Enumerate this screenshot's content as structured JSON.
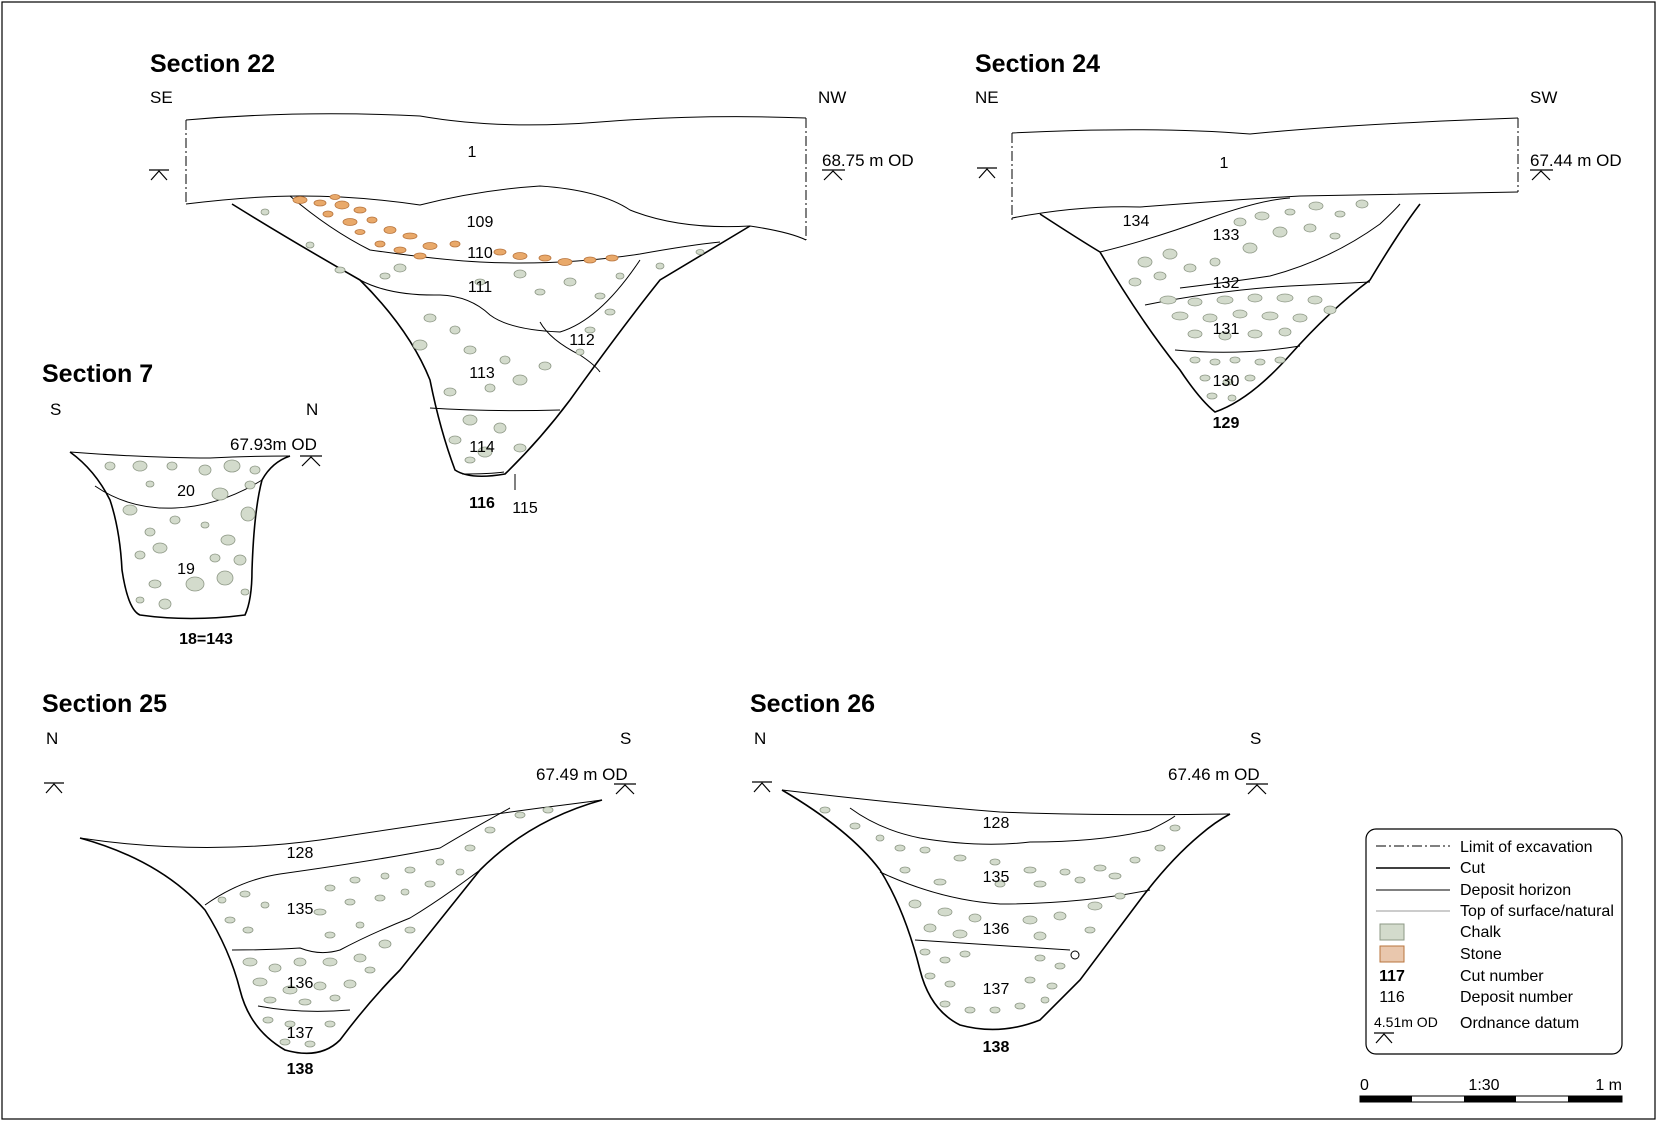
{
  "sections": {
    "s22": {
      "title": "Section 22",
      "left": "SE",
      "right": "NW",
      "datum": "68.75 m OD",
      "deposits": [
        "1",
        "109",
        "110",
        "111",
        "112",
        "113",
        "114",
        "115"
      ],
      "cut": "116"
    },
    "s24": {
      "title": "Section 24",
      "left": "NE",
      "right": "SW",
      "datum": "67.44 m OD",
      "deposits": [
        "1",
        "134",
        "133",
        "132",
        "131",
        "130"
      ],
      "cut": "129"
    },
    "s7": {
      "title": "Section 7",
      "left": "S",
      "right": "N",
      "datum": "67.93m OD",
      "deposits": [
        "20",
        "19"
      ],
      "cut": "18=143"
    },
    "s25": {
      "title": "Section 25",
      "left": "N",
      "right": "S",
      "datum": "67.49 m OD",
      "deposits": [
        "128",
        "135",
        "136",
        "137"
      ],
      "cut": "138"
    },
    "s26": {
      "title": "Section 26",
      "left": "N",
      "right": "S",
      "datum": "67.46 m OD",
      "deposits": [
        "128",
        "135",
        "136",
        "137"
      ],
      "cut": "138"
    }
  },
  "legend": {
    "items": [
      {
        "symbol": "dash-dot-line",
        "label": "Limit of excavation"
      },
      {
        "symbol": "cut-line",
        "label": "Cut"
      },
      {
        "symbol": "horizon-line",
        "label": "Deposit horizon"
      },
      {
        "symbol": "surface-line",
        "label": "Top of surface/natural"
      },
      {
        "symbol": "chalk-swatch",
        "label": "Chalk"
      },
      {
        "symbol": "stone-swatch",
        "label": "Stone"
      },
      {
        "symbol": "117",
        "label": "Cut number"
      },
      {
        "symbol": "116",
        "label": "Deposit number"
      },
      {
        "symbol": "4.51m OD",
        "label": "Ordnance datum"
      }
    ]
  },
  "scale": {
    "start": "0",
    "ratio": "1:30",
    "end": "1 m"
  },
  "colors": {
    "chalk": "#d3dbcc",
    "chalk_outline": "#8e9886",
    "stone": "#e9a96a",
    "stone_outline": "#b8753e",
    "line": "#000000"
  }
}
